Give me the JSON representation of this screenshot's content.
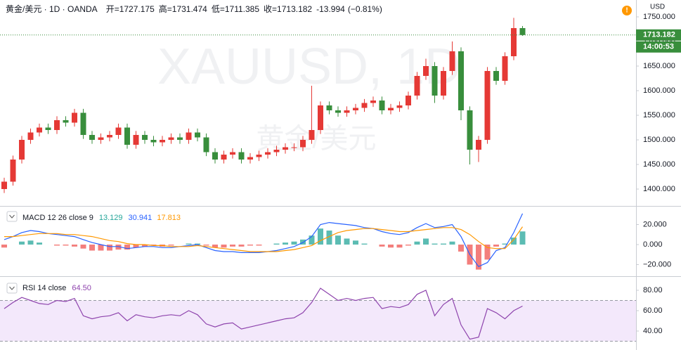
{
  "chart_data": [
    {
      "type": "candlestick",
      "title": "黄金/美元 · 1D · OANDA",
      "ohlc_labels": [
        "开=",
        "高=",
        "低=",
        "收="
      ],
      "change": -13.994,
      "change_pct": {
        "value": -0.81,
        "label": "(−0.81%)"
      },
      "watermark": "XAUUSD, 1D",
      "watermark_sub": "黄金/美元",
      "currency": "USD",
      "countdown": "14:00:53",
      "up_color": "#e53935",
      "down_color": "#388e3c",
      "last_price_line": true,
      "open": [
        1400,
        1415,
        1460,
        1500,
        1515,
        1525,
        1520,
        1540,
        1535,
        1555,
        1510,
        1500,
        1505,
        1510,
        1525,
        1490,
        1510,
        1500,
        1495,
        1500,
        1505,
        1500,
        1515,
        1505,
        1475,
        1460,
        1470,
        1475,
        1460,
        1465,
        1470,
        1475,
        1480,
        1485,
        1485,
        1500,
        1520,
        1570,
        1560,
        1555,
        1560,
        1565,
        1575,
        1580,
        1560,
        1565,
        1570,
        1590,
        1630,
        1650,
        1590,
        1640,
        1680,
        1560,
        1480,
        1500,
        1640,
        1620,
        1670,
        1727.175
      ],
      "high": [
        1423,
        1468,
        1508,
        1523,
        1533,
        1533,
        1548,
        1548,
        1563,
        1563,
        1518,
        1513,
        1518,
        1533,
        1533,
        1518,
        1518,
        1508,
        1508,
        1513,
        1513,
        1523,
        1523,
        1513,
        1483,
        1478,
        1483,
        1483,
        1473,
        1478,
        1483,
        1488,
        1493,
        1493,
        1508,
        1610,
        1578,
        1578,
        1568,
        1568,
        1573,
        1583,
        1588,
        1588,
        1573,
        1578,
        1598,
        1638,
        1665,
        1658,
        1648,
        1700,
        1688,
        1568,
        1508,
        1648,
        1648,
        1678,
        1748,
        1731.474
      ],
      "low": [
        1392,
        1407,
        1452,
        1492,
        1507,
        1512,
        1512,
        1527,
        1527,
        1502,
        1492,
        1492,
        1497,
        1502,
        1482,
        1482,
        1492,
        1487,
        1487,
        1492,
        1492,
        1492,
        1497,
        1467,
        1452,
        1452,
        1462,
        1452,
        1452,
        1457,
        1462,
        1467,
        1472,
        1477,
        1477,
        1492,
        1512,
        1552,
        1547,
        1547,
        1552,
        1557,
        1567,
        1552,
        1552,
        1557,
        1562,
        1582,
        1622,
        1575,
        1582,
        1632,
        1540,
        1450,
        1455,
        1492,
        1612,
        1612,
        1662,
        1711.385
      ],
      "close": [
        1415,
        1460,
        1500,
        1515,
        1525,
        1520,
        1540,
        1535,
        1555,
        1510,
        1500,
        1505,
        1510,
        1525,
        1490,
        1510,
        1500,
        1495,
        1500,
        1505,
        1500,
        1515,
        1505,
        1475,
        1460,
        1470,
        1475,
        1460,
        1465,
        1470,
        1475,
        1480,
        1485,
        1485,
        1500,
        1520,
        1570,
        1560,
        1555,
        1560,
        1565,
        1575,
        1580,
        1560,
        1565,
        1570,
        1590,
        1630,
        1650,
        1590,
        1640,
        1680,
        1560,
        1480,
        1500,
        1640,
        1620,
        1670,
        1727.175,
        1713.182
      ],
      "ylim": [
        1365.7,
        1784.3
      ],
      "yticks": [
        {
          "value": 1400,
          "label": "1400.000"
        },
        {
          "value": 1450,
          "label": "1450.000"
        },
        {
          "value": 1500,
          "label": "1500.000"
        },
        {
          "value": 1550,
          "label": "1550.000"
        },
        {
          "value": 1600,
          "label": "1600.000"
        },
        {
          "value": 1650,
          "label": "1650.000"
        },
        {
          "value": 1700,
          "label": "1700.000"
        },
        {
          "value": 1750,
          "label": "1750.000"
        }
      ]
    },
    {
      "type": "combo",
      "title": "MACD 12 26 close 9",
      "series": [
        {
          "type": "bar",
          "color": "#26a69a",
          "negative_color": "#ef5350",
          "values": [
            -3,
            0,
            3,
            4,
            2,
            0,
            -1,
            -1,
            -2,
            -4,
            -6,
            -6,
            -6,
            -5,
            -5,
            -3,
            -2,
            -1,
            -2,
            -1,
            0,
            1,
            1,
            -1,
            -3,
            -3,
            -2,
            -2,
            -1,
            -1,
            0,
            1,
            2,
            3,
            5,
            9,
            16,
            14,
            9,
            6,
            4,
            1,
            0,
            -2,
            -3,
            -3,
            -1,
            3,
            6,
            1,
            1,
            3,
            -7,
            -20,
            -25,
            -15,
            -2,
            1,
            7,
            13.129
          ]
        },
        {
          "type": "line",
          "color": "#2962ff",
          "values": [
            5,
            8,
            12,
            14,
            13,
            11,
            10,
            9,
            8,
            5,
            2,
            0,
            -2,
            -2,
            -4,
            -3,
            -2,
            -2,
            -3,
            -3,
            -2,
            -1,
            0,
            -3,
            -6,
            -7,
            -7,
            -8,
            -8,
            -8,
            -7,
            -6,
            -4,
            -2,
            2,
            8,
            20,
            22,
            21,
            20,
            19,
            17,
            16,
            13,
            11,
            10,
            12,
            17,
            21,
            17,
            18,
            20,
            8,
            -10,
            -22,
            -18,
            -6,
            -3,
            12,
            30.941
          ]
        },
        {
          "type": "line",
          "color": "#ff9800",
          "values": [
            8,
            8,
            9,
            10,
            11,
            11,
            11,
            10,
            10,
            9,
            8,
            6,
            4,
            3,
            1,
            0,
            0,
            -1,
            -1,
            -2,
            -2,
            -2,
            -1,
            -2,
            -3,
            -4,
            -5,
            -6,
            -7,
            -7,
            -7,
            -7,
            -6,
            -5,
            -3,
            -1,
            4,
            8,
            12,
            14,
            15,
            16,
            16,
            15,
            14,
            13,
            13,
            14,
            15,
            16,
            17,
            17,
            15,
            10,
            3,
            -3,
            -4,
            -4,
            5,
            17.813
          ]
        }
      ],
      "ylim": [
        -31.6,
        37.9
      ],
      "yticks": [
        {
          "value": 20,
          "label": "20.000"
        },
        {
          "value": 0,
          "label": "0.000"
        },
        {
          "value": -20,
          "label": "−20.000"
        }
      ]
    },
    {
      "type": "line",
      "title": "RSI 14 close",
      "legend_value": {
        "value": 64.5,
        "label": "64.50"
      },
      "color": "#8e44ad",
      "band": [
        30,
        70
      ],
      "band_color": "#f3e8fb",
      "values": [
        62,
        68,
        73,
        70,
        67,
        66,
        70,
        69,
        72,
        55,
        52,
        54,
        55,
        58,
        50,
        56,
        54,
        53,
        55,
        56,
        55,
        60,
        56,
        47,
        44,
        47,
        48,
        42,
        44,
        46,
        48,
        50,
        52,
        53,
        58,
        68,
        82,
        76,
        70,
        72,
        70,
        72,
        73,
        62,
        64,
        63,
        66,
        76,
        80,
        55,
        66,
        72,
        46,
        32,
        34,
        62,
        58,
        52,
        60,
        64.5
      ],
      "ylim": [
        21.4,
        93.1
      ],
      "yticks": [
        {
          "value": 80,
          "label": "80.00"
        },
        {
          "value": 60,
          "label": "60.00"
        },
        {
          "value": 40,
          "label": "40.00"
        }
      ]
    }
  ]
}
